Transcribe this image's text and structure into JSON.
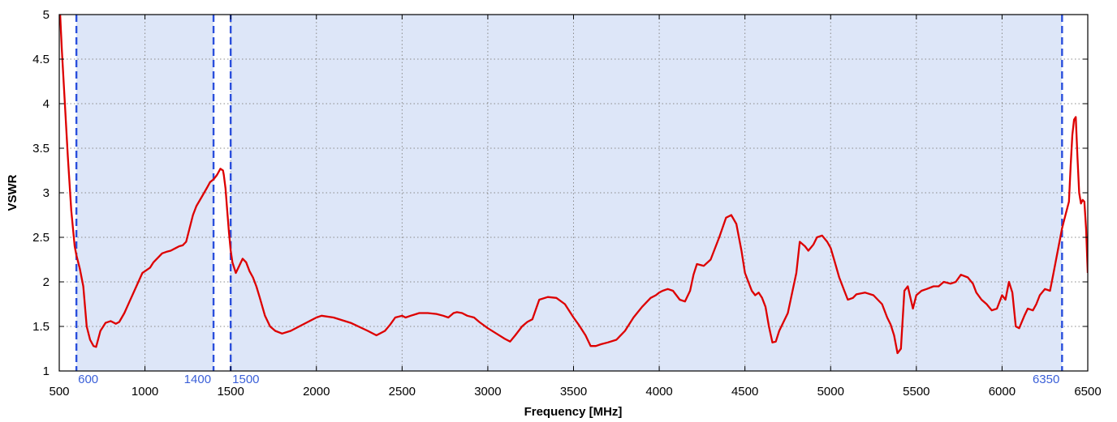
{
  "chart_data": {
    "type": "line",
    "title": "",
    "xlabel": "Frequency [MHz]",
    "ylabel": "VSWR",
    "xlim": [
      500,
      6500
    ],
    "ylim": [
      1,
      5
    ],
    "x_ticks": [
      500,
      1000,
      1500,
      2000,
      2500,
      3000,
      3500,
      4000,
      4500,
      5000,
      5500,
      6000,
      6500
    ],
    "y_ticks": [
      1,
      1.5,
      2,
      2.5,
      3,
      3.5,
      4,
      4.5,
      5
    ],
    "x_tick_labels": [
      "500",
      "1000",
      "1500",
      "2000",
      "2500",
      "3000",
      "3500",
      "4000",
      "4500",
      "5000",
      "5500",
      "6000",
      "6500"
    ],
    "y_tick_labels": [
      "1",
      "1.5",
      "2",
      "2.5",
      "3",
      "3.5",
      "4",
      "4.5",
      "5"
    ],
    "grid": true,
    "shaded_bands": [
      {
        "start": 600,
        "end": 1400
      },
      {
        "start": 1500,
        "end": 6350
      }
    ],
    "band_edges": [
      {
        "x": 600,
        "label": "600"
      },
      {
        "x": 1400,
        "label": "1400"
      },
      {
        "x": 1500,
        "label": "1500"
      },
      {
        "x": 6350,
        "label": "6350"
      }
    ],
    "colors": {
      "line": "#dd0000",
      "band_fill": "#dde6f8",
      "band_edge": "#2a4fdc",
      "band_label": "#3a5fd8",
      "grid": "#8a8a8a"
    },
    "series": [
      {
        "x": [
          505,
          515,
          530,
          550,
          570,
          590,
          600,
          620,
          640,
          660,
          680,
          700,
          715,
          740,
          770,
          800,
          830,
          850,
          880,
          910,
          950,
          985,
          1000,
          1030,
          1050,
          1080,
          1100,
          1130,
          1150,
          1180,
          1200,
          1220,
          1240,
          1260,
          1280,
          1300,
          1330,
          1360,
          1380,
          1400,
          1420,
          1440,
          1455,
          1460,
          1470,
          1480,
          1490,
          1500,
          1510,
          1530,
          1550,
          1570,
          1590,
          1610,
          1630,
          1650,
          1670,
          1700,
          1730,
          1760,
          1800,
          1850,
          1900,
          1950,
          2000,
          2030,
          2100,
          2200,
          2300,
          2350,
          2400,
          2430,
          2460,
          2500,
          2520,
          2550,
          2600,
          2650,
          2700,
          2740,
          2770,
          2800,
          2820,
          2850,
          2880,
          2920,
          2950,
          3000,
          3050,
          3100,
          3130,
          3160,
          3200,
          3230,
          3260,
          3300,
          3350,
          3400,
          3450,
          3500,
          3530,
          3570,
          3600,
          3630,
          3660,
          3700,
          3750,
          3800,
          3850,
          3900,
          3950,
          3980,
          4000,
          4020,
          4050,
          4080,
          4100,
          4120,
          4150,
          4180,
          4200,
          4220,
          4260,
          4300,
          4350,
          4390,
          4420,
          4450,
          4480,
          4500,
          4520,
          4540,
          4560,
          4580,
          4600,
          4620,
          4640,
          4660,
          4680,
          4700,
          4750,
          4800,
          4820,
          4850,
          4870,
          4900,
          4920,
          4950,
          4980,
          5000,
          5020,
          5050,
          5080,
          5100,
          5130,
          5150,
          5200,
          5250,
          5300,
          5330,
          5350,
          5370,
          5390,
          5410,
          5430,
          5450,
          5480,
          5500,
          5530,
          5560,
          5600,
          5630,
          5660,
          5700,
          5730,
          5760,
          5800,
          5830,
          5850,
          5880,
          5910,
          5940,
          5970,
          6000,
          6020,
          6040,
          6060,
          6080,
          6100,
          6130,
          6150,
          6180,
          6200,
          6220,
          6250,
          6280,
          6300,
          6330,
          6350,
          6370,
          6390,
          6400,
          6410,
          6420,
          6430,
          6440,
          6450,
          6460,
          6470,
          6480,
          6490,
          6500
        ],
        "y": [
          5.0,
          4.6,
          4.1,
          3.4,
          2.8,
          2.4,
          2.3,
          2.15,
          1.95,
          1.5,
          1.35,
          1.28,
          1.27,
          1.45,
          1.54,
          1.56,
          1.53,
          1.55,
          1.65,
          1.78,
          1.95,
          2.1,
          2.12,
          2.16,
          2.22,
          2.28,
          2.32,
          2.34,
          2.35,
          2.38,
          2.4,
          2.41,
          2.45,
          2.6,
          2.75,
          2.85,
          2.95,
          3.05,
          3.12,
          3.15,
          3.2,
          3.27,
          3.25,
          3.2,
          3.05,
          2.8,
          2.55,
          2.35,
          2.22,
          2.1,
          2.18,
          2.26,
          2.22,
          2.12,
          2.05,
          1.95,
          1.82,
          1.62,
          1.5,
          1.45,
          1.42,
          1.45,
          1.5,
          1.55,
          1.6,
          1.62,
          1.6,
          1.54,
          1.45,
          1.4,
          1.45,
          1.52,
          1.6,
          1.62,
          1.6,
          1.62,
          1.65,
          1.65,
          1.64,
          1.62,
          1.6,
          1.65,
          1.66,
          1.65,
          1.62,
          1.6,
          1.55,
          1.48,
          1.42,
          1.36,
          1.33,
          1.4,
          1.5,
          1.55,
          1.58,
          1.8,
          1.83,
          1.82,
          1.75,
          1.6,
          1.52,
          1.4,
          1.28,
          1.28,
          1.3,
          1.32,
          1.35,
          1.45,
          1.6,
          1.72,
          1.82,
          1.85,
          1.88,
          1.9,
          1.92,
          1.9,
          1.85,
          1.8,
          1.78,
          1.9,
          2.08,
          2.2,
          2.18,
          2.25,
          2.5,
          2.72,
          2.75,
          2.65,
          2.35,
          2.1,
          2.0,
          1.9,
          1.85,
          1.88,
          1.82,
          1.72,
          1.5,
          1.32,
          1.33,
          1.45,
          1.65,
          2.1,
          2.45,
          2.4,
          2.35,
          2.42,
          2.5,
          2.52,
          2.45,
          2.38,
          2.25,
          2.05,
          1.9,
          1.8,
          1.82,
          1.86,
          1.88,
          1.85,
          1.75,
          1.6,
          1.52,
          1.4,
          1.2,
          1.25,
          1.9,
          1.95,
          1.7,
          1.85,
          1.9,
          1.92,
          1.95,
          1.95,
          2.0,
          1.98,
          2.0,
          2.08,
          2.05,
          1.98,
          1.88,
          1.8,
          1.75,
          1.68,
          1.7,
          1.85,
          1.8,
          2.0,
          1.88,
          1.5,
          1.48,
          1.62,
          1.7,
          1.68,
          1.75,
          1.85,
          1.92,
          1.9,
          2.1,
          2.4,
          2.6,
          2.75,
          2.9,
          3.3,
          3.65,
          3.82,
          3.85,
          3.4,
          3.0,
          2.88,
          2.92,
          2.9,
          2.6,
          2.1
        ]
      }
    ]
  }
}
